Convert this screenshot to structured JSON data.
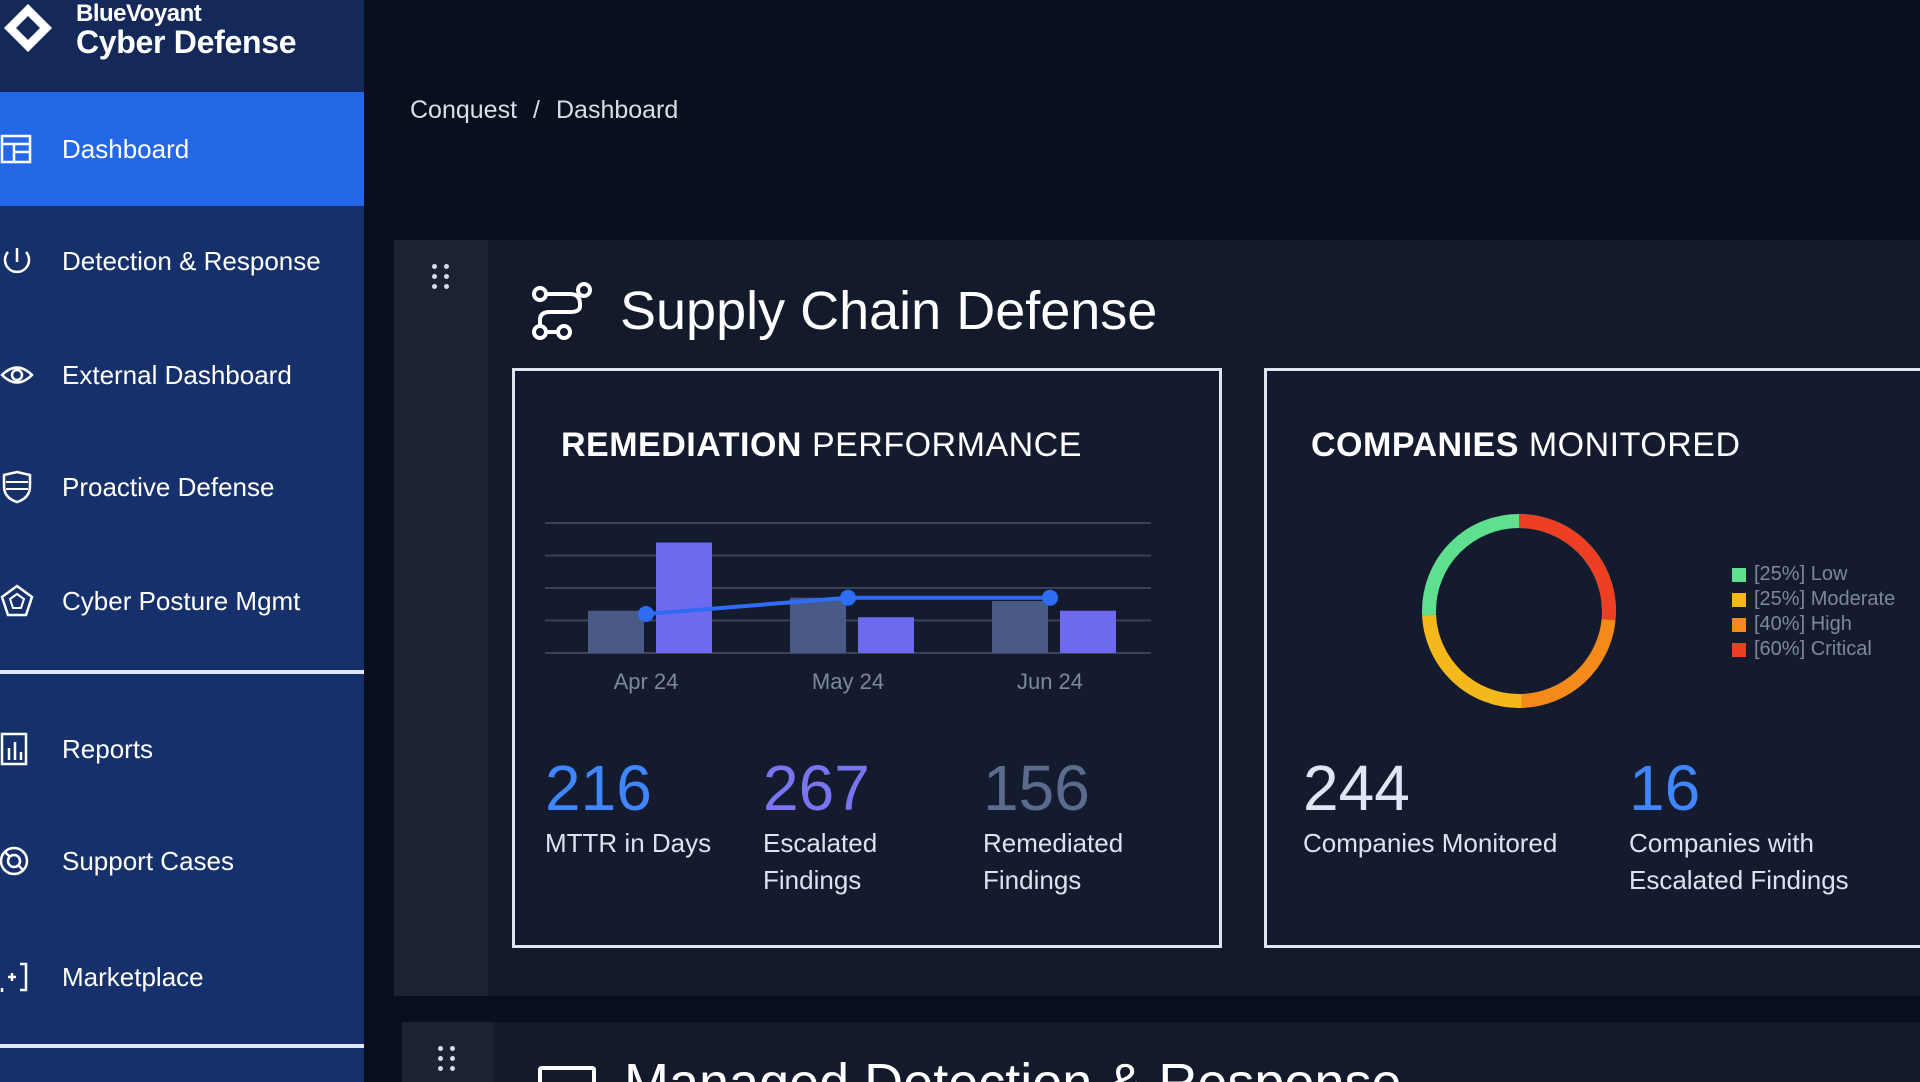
{
  "brand": {
    "line1": "BlueVoyant",
    "line2": "Cyber Defense"
  },
  "sidebar": {
    "items": [
      {
        "label": "Dashboard",
        "icon": "dashboard-icon",
        "active": true
      },
      {
        "label": "Detection & Response",
        "icon": "power-cycle-icon"
      },
      {
        "label": "External Dashboard",
        "icon": "eye-icon"
      },
      {
        "label": "Proactive Defense",
        "icon": "shield-icon"
      },
      {
        "label": "Cyber Posture Mgmt",
        "icon": "pentagon-icon"
      },
      {
        "label": "Reports",
        "icon": "bar-chart-icon"
      },
      {
        "label": "Support Cases",
        "icon": "lifebuoy-icon"
      },
      {
        "label": "Marketplace",
        "icon": "add-bracket-icon"
      }
    ]
  },
  "breadcrumb": {
    "root": "Conquest",
    "separator": "/",
    "current": "Dashboard"
  },
  "section": {
    "title": "Supply Chain Defense",
    "icon": "supply-chain-icon"
  },
  "remediation": {
    "title_bold": "REMEDIATION",
    "title_rest": "PERFORMANCE",
    "stats": [
      {
        "value": "216",
        "label": "MTTR in Days",
        "color": "#3f86ff"
      },
      {
        "value": "267",
        "label_line1": "Escalated",
        "label_line2": "Findings",
        "color": "#7b74f0"
      },
      {
        "value": "156",
        "label_line1": "Remediated",
        "label_line2": "Findings",
        "color": "#5a6b8e"
      }
    ]
  },
  "companies": {
    "title_bold": "COMPANIES",
    "title_rest": "MONITORED",
    "legend": [
      {
        "label": "[25%] Low",
        "color": "#5ee08f"
      },
      {
        "label": "[25%] Moderate",
        "color": "#f5b81c"
      },
      {
        "label": "[40%] High",
        "color": "#f38a1a"
      },
      {
        "label": "[60%] Critical",
        "color": "#ee3f24"
      }
    ],
    "stats": [
      {
        "value": "244",
        "label": "Companies Monitored",
        "color": "#dfe6f5"
      },
      {
        "value": "16",
        "label_line1": "Companies with",
        "label_line2": "Escalated Findings",
        "color": "#3f86ff"
      }
    ]
  },
  "chart_data": {
    "type": "bar",
    "categories": [
      "Apr 24",
      "May 24",
      "Jun 24"
    ],
    "series": [
      {
        "values": [
          13,
          17,
          16
        ],
        "color": "#4a5a86"
      },
      {
        "values": [
          34,
          11,
          13
        ],
        "color": "#6e6af0"
      }
    ],
    "line": {
      "values": [
        12,
        17,
        17
      ],
      "color": "#2f6cf6"
    },
    "ylim": [
      0,
      40
    ],
    "grid": true
  },
  "panel2": {
    "title": "Managed Detection & Response"
  }
}
